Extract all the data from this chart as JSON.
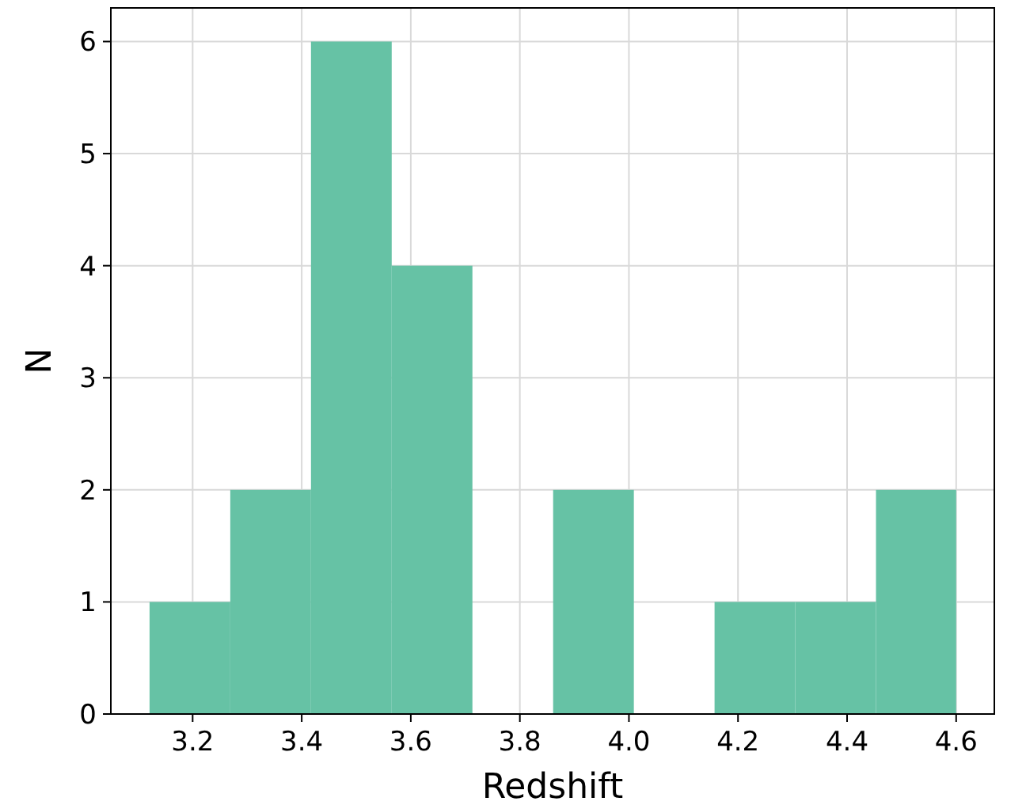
{
  "chart_data": {
    "type": "histogram",
    "xlabel": "Redshift",
    "ylabel": "N",
    "bins": [
      3.121,
      3.269,
      3.417,
      3.565,
      3.713,
      3.861,
      4.009,
      4.157,
      4.305,
      4.453,
      4.6
    ],
    "values": [
      1,
      2,
      6,
      4,
      0,
      2,
      0,
      1,
      1,
      2
    ],
    "color": "#66c2a5",
    "xlim": [
      3.05,
      4.67
    ],
    "ylim": [
      0,
      6.3
    ],
    "xticks": [
      {
        "value": 3.2,
        "label": "3.2"
      },
      {
        "value": 3.4,
        "label": "3.4"
      },
      {
        "value": 3.6,
        "label": "3.6"
      },
      {
        "value": 3.8,
        "label": "3.8"
      },
      {
        "value": 4.0,
        "label": "4.0"
      },
      {
        "value": 4.2,
        "label": "4.2"
      },
      {
        "value": 4.4,
        "label": "4.4"
      },
      {
        "value": 4.6,
        "label": "4.6"
      }
    ],
    "yticks": [
      0,
      1,
      2,
      3,
      4,
      5,
      6
    ],
    "grid": true
  }
}
